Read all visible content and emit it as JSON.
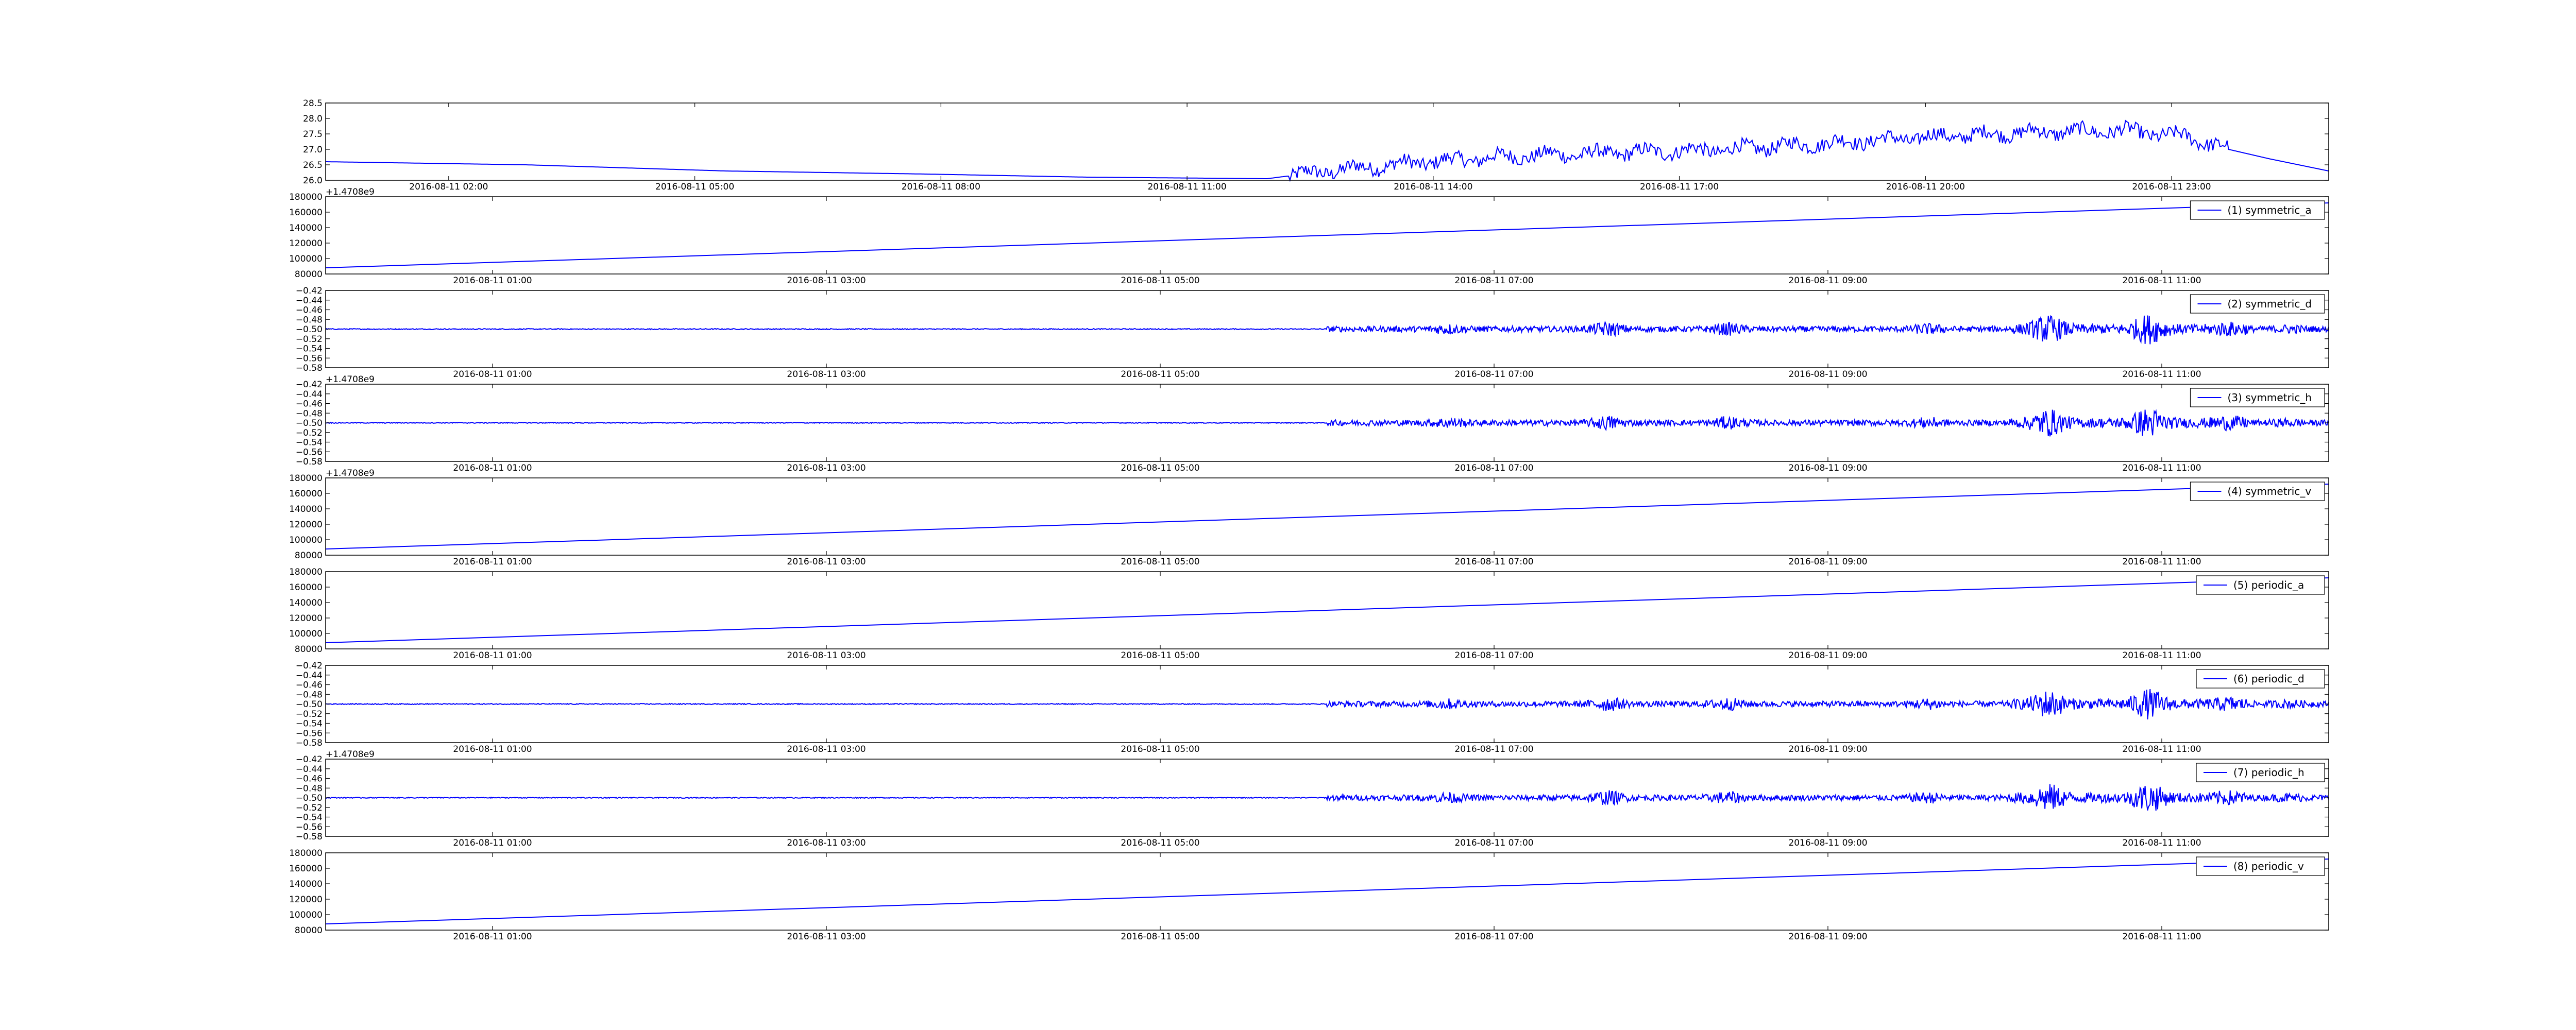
{
  "chart_data": [
    {
      "type": "line",
      "series": [
        {
          "label": ""
        }
      ],
      "ylim": [
        26.0,
        28.5
      ],
      "y_ticks": [
        "26.0",
        "26.5",
        "27.0",
        "27.5",
        "28.0",
        "28.5"
      ],
      "x_ticks": [
        "2016-08-11 02:00",
        "2016-08-11 05:00",
        "2016-08-11 08:00",
        "2016-08-11 11:00",
        "2016-08-11 14:00",
        "2016-08-11 17:00",
        "2016-08-11 20:00",
        "2016-08-11 23:00"
      ],
      "offset": "",
      "shape": "temperature",
      "profile": [
        [
          0,
          26.6
        ],
        [
          0.1,
          26.5
        ],
        [
          0.2,
          26.3
        ],
        [
          0.3,
          26.2
        ],
        [
          0.38,
          26.1
        ],
        [
          0.47,
          26.05
        ],
        [
          0.5,
          26.3
        ],
        [
          0.55,
          26.6
        ],
        [
          0.6,
          26.8
        ],
        [
          0.65,
          26.9
        ],
        [
          0.7,
          27.0
        ],
        [
          0.75,
          27.2
        ],
        [
          0.8,
          27.4
        ],
        [
          0.85,
          27.55
        ],
        [
          0.9,
          27.6
        ],
        [
          0.93,
          27.4
        ],
        [
          0.95,
          27.0
        ],
        [
          0.97,
          26.7
        ],
        [
          1.0,
          26.3
        ]
      ]
    },
    {
      "type": "line",
      "series": [
        {
          "label": "(1) symmetric_a"
        }
      ],
      "ylim": [
        80000,
        180000
      ],
      "y_ticks": [
        "80000",
        "100000",
        "120000",
        "140000",
        "160000",
        "180000"
      ],
      "x_ticks": [
        "2016-08-11 01:00",
        "2016-08-11 03:00",
        "2016-08-11 05:00",
        "2016-08-11 07:00",
        "2016-08-11 09:00",
        "2016-08-11 11:00"
      ],
      "offset": "+1.4708e9",
      "shape": "linear",
      "line": [
        88000,
        172000
      ]
    },
    {
      "type": "line",
      "series": [
        {
          "label": "(2) symmetric_d"
        }
      ],
      "ylim": [
        -0.58,
        -0.42
      ],
      "y_ticks": [
        "−0.58",
        "−0.56",
        "−0.54",
        "−0.52",
        "−0.50",
        "−0.48",
        "−0.46",
        "−0.44",
        "−0.42"
      ],
      "x_ticks": [
        "2016-08-11 01:00",
        "2016-08-11 03:00",
        "2016-08-11 05:00",
        "2016-08-11 07:00",
        "2016-08-11 09:00",
        "2016-08-11 11:00"
      ],
      "offset": "",
      "shape": "noise",
      "baseline": -0.5
    },
    {
      "type": "line",
      "series": [
        {
          "label": "(3) symmetric_h"
        }
      ],
      "ylim": [
        -0.58,
        -0.42
      ],
      "y_ticks": [
        "−0.58",
        "−0.56",
        "−0.54",
        "−0.52",
        "−0.50",
        "−0.48",
        "−0.46",
        "−0.44",
        "−0.42"
      ],
      "x_ticks": [
        "2016-08-11 01:00",
        "2016-08-11 03:00",
        "2016-08-11 05:00",
        "2016-08-11 07:00",
        "2016-08-11 09:00",
        "2016-08-11 11:00"
      ],
      "offset": "+1.4708e9",
      "shape": "noise",
      "baseline": -0.5
    },
    {
      "type": "line",
      "series": [
        {
          "label": "(4) symmetric_v"
        }
      ],
      "ylim": [
        80000,
        180000
      ],
      "y_ticks": [
        "80000",
        "100000",
        "120000",
        "140000",
        "160000",
        "180000"
      ],
      "x_ticks": [
        "2016-08-11 01:00",
        "2016-08-11 03:00",
        "2016-08-11 05:00",
        "2016-08-11 07:00",
        "2016-08-11 09:00",
        "2016-08-11 11:00"
      ],
      "offset": "+1.4708e9",
      "shape": "linear",
      "line": [
        88000,
        172000
      ]
    },
    {
      "type": "line",
      "series": [
        {
          "label": "(5) periodic_a"
        }
      ],
      "ylim": [
        80000,
        180000
      ],
      "y_ticks": [
        "80000",
        "100000",
        "120000",
        "140000",
        "160000",
        "180000"
      ],
      "x_ticks": [
        "2016-08-11 01:00",
        "2016-08-11 03:00",
        "2016-08-11 05:00",
        "2016-08-11 07:00",
        "2016-08-11 09:00",
        "2016-08-11 11:00"
      ],
      "offset": "",
      "shape": "linear",
      "line": [
        88000,
        172000
      ]
    },
    {
      "type": "line",
      "series": [
        {
          "label": "(6) periodic_d"
        }
      ],
      "ylim": [
        -0.58,
        -0.42
      ],
      "y_ticks": [
        "−0.58",
        "−0.56",
        "−0.54",
        "−0.52",
        "−0.50",
        "−0.48",
        "−0.46",
        "−0.44",
        "−0.42"
      ],
      "x_ticks": [
        "2016-08-11 01:00",
        "2016-08-11 03:00",
        "2016-08-11 05:00",
        "2016-08-11 07:00",
        "2016-08-11 09:00",
        "2016-08-11 11:00"
      ],
      "offset": "",
      "shape": "noise",
      "baseline": -0.5
    },
    {
      "type": "line",
      "series": [
        {
          "label": "(7) periodic_h"
        }
      ],
      "ylim": [
        -0.58,
        -0.42
      ],
      "y_ticks": [
        "−0.58",
        "−0.56",
        "−0.54",
        "−0.52",
        "−0.50",
        "−0.48",
        "−0.46",
        "−0.44",
        "−0.42"
      ],
      "x_ticks": [
        "2016-08-11 01:00",
        "2016-08-11 03:00",
        "2016-08-11 05:00",
        "2016-08-11 07:00",
        "2016-08-11 09:00",
        "2016-08-11 11:00"
      ],
      "offset": "+1.4708e9",
      "shape": "noise",
      "baseline": -0.5
    },
    {
      "type": "line",
      "series": [
        {
          "label": "(8) periodic_v"
        }
      ],
      "ylim": [
        80000,
        180000
      ],
      "y_ticks": [
        "80000",
        "100000",
        "120000",
        "140000",
        "160000",
        "180000"
      ],
      "x_ticks": [
        "2016-08-11 01:00",
        "2016-08-11 03:00",
        "2016-08-11 05:00",
        "2016-08-11 07:00",
        "2016-08-11 09:00",
        "2016-08-11 11:00"
      ],
      "offset": "",
      "shape": "linear",
      "line": [
        88000,
        172000
      ]
    }
  ],
  "colors": {
    "line": "#0000ff",
    "axes": "#000000",
    "legend_border": "#000000",
    "background": "#ffffff"
  }
}
